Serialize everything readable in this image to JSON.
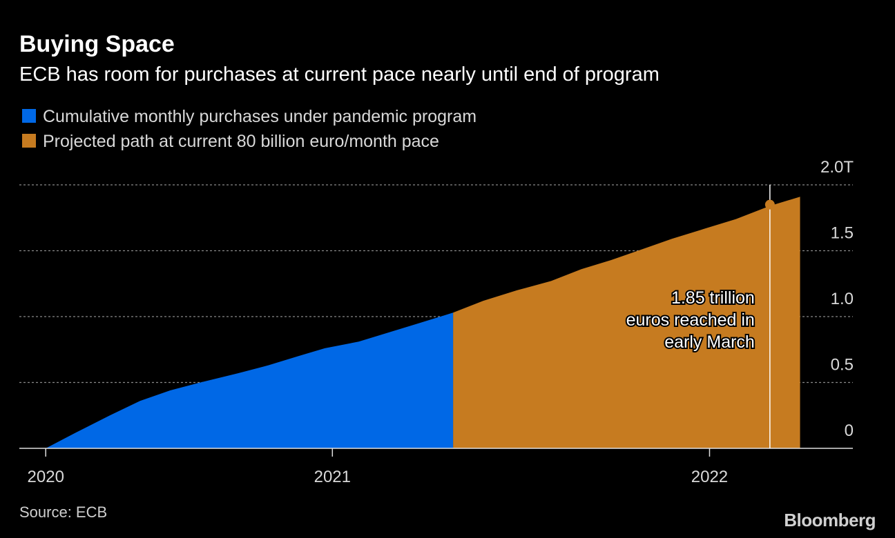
{
  "chart_data": {
    "type": "area",
    "title": "Buying Space",
    "subtitle": "ECB has room for purchases at current pace nearly until end of program",
    "x": [
      2020.24,
      2020.32,
      2020.41,
      2020.49,
      2020.57,
      2020.65,
      2020.75,
      2020.83,
      2020.91,
      2020.98,
      2021.07,
      2021.15,
      2021.23,
      2021.32,
      2021.4,
      2021.49,
      2021.58,
      2021.66,
      2021.74,
      2021.82,
      2021.9,
      2021.99,
      2022.07,
      2022.16,
      2022.24
    ],
    "series": [
      {
        "name": "Cumulative monthly purchases under pandemic program",
        "color": "#0068e6",
        "values": [
          0,
          0.12,
          0.25,
          0.36,
          0.44,
          0.5,
          0.57,
          0.63,
          0.7,
          0.76,
          0.81,
          0.88,
          0.95,
          1.03,
          null,
          null,
          null,
          null,
          null,
          null,
          null,
          null,
          null,
          null,
          null
        ]
      },
      {
        "name": "Projected path at current 80 billion euro/month pace",
        "color": "#c67b20",
        "values": [
          null,
          null,
          null,
          null,
          null,
          null,
          null,
          null,
          null,
          null,
          null,
          null,
          null,
          1.03,
          1.12,
          1.2,
          1.27,
          1.36,
          1.43,
          1.51,
          1.59,
          1.67,
          1.74,
          1.84,
          1.91
        ]
      }
    ],
    "xlim": [
      2020.17,
      2022.38
    ],
    "xticks": [
      {
        "value": 2020.24,
        "label": "2020"
      },
      2021,
      2022
    ],
    "ylim": [
      0,
      2
    ],
    "yticks": [
      0,
      0.5,
      {
        "value": 1,
        "label": "1.0"
      },
      1.5,
      {
        "value": 2,
        "label": "2.0T"
      }
    ],
    "grid": true,
    "annotation": {
      "lines": [
        "1.85 trillion",
        "euros reached in",
        "early March"
      ],
      "x": 2022.16,
      "y": 1.85
    },
    "source": "Source: ECB",
    "logo": "Bloomberg"
  }
}
